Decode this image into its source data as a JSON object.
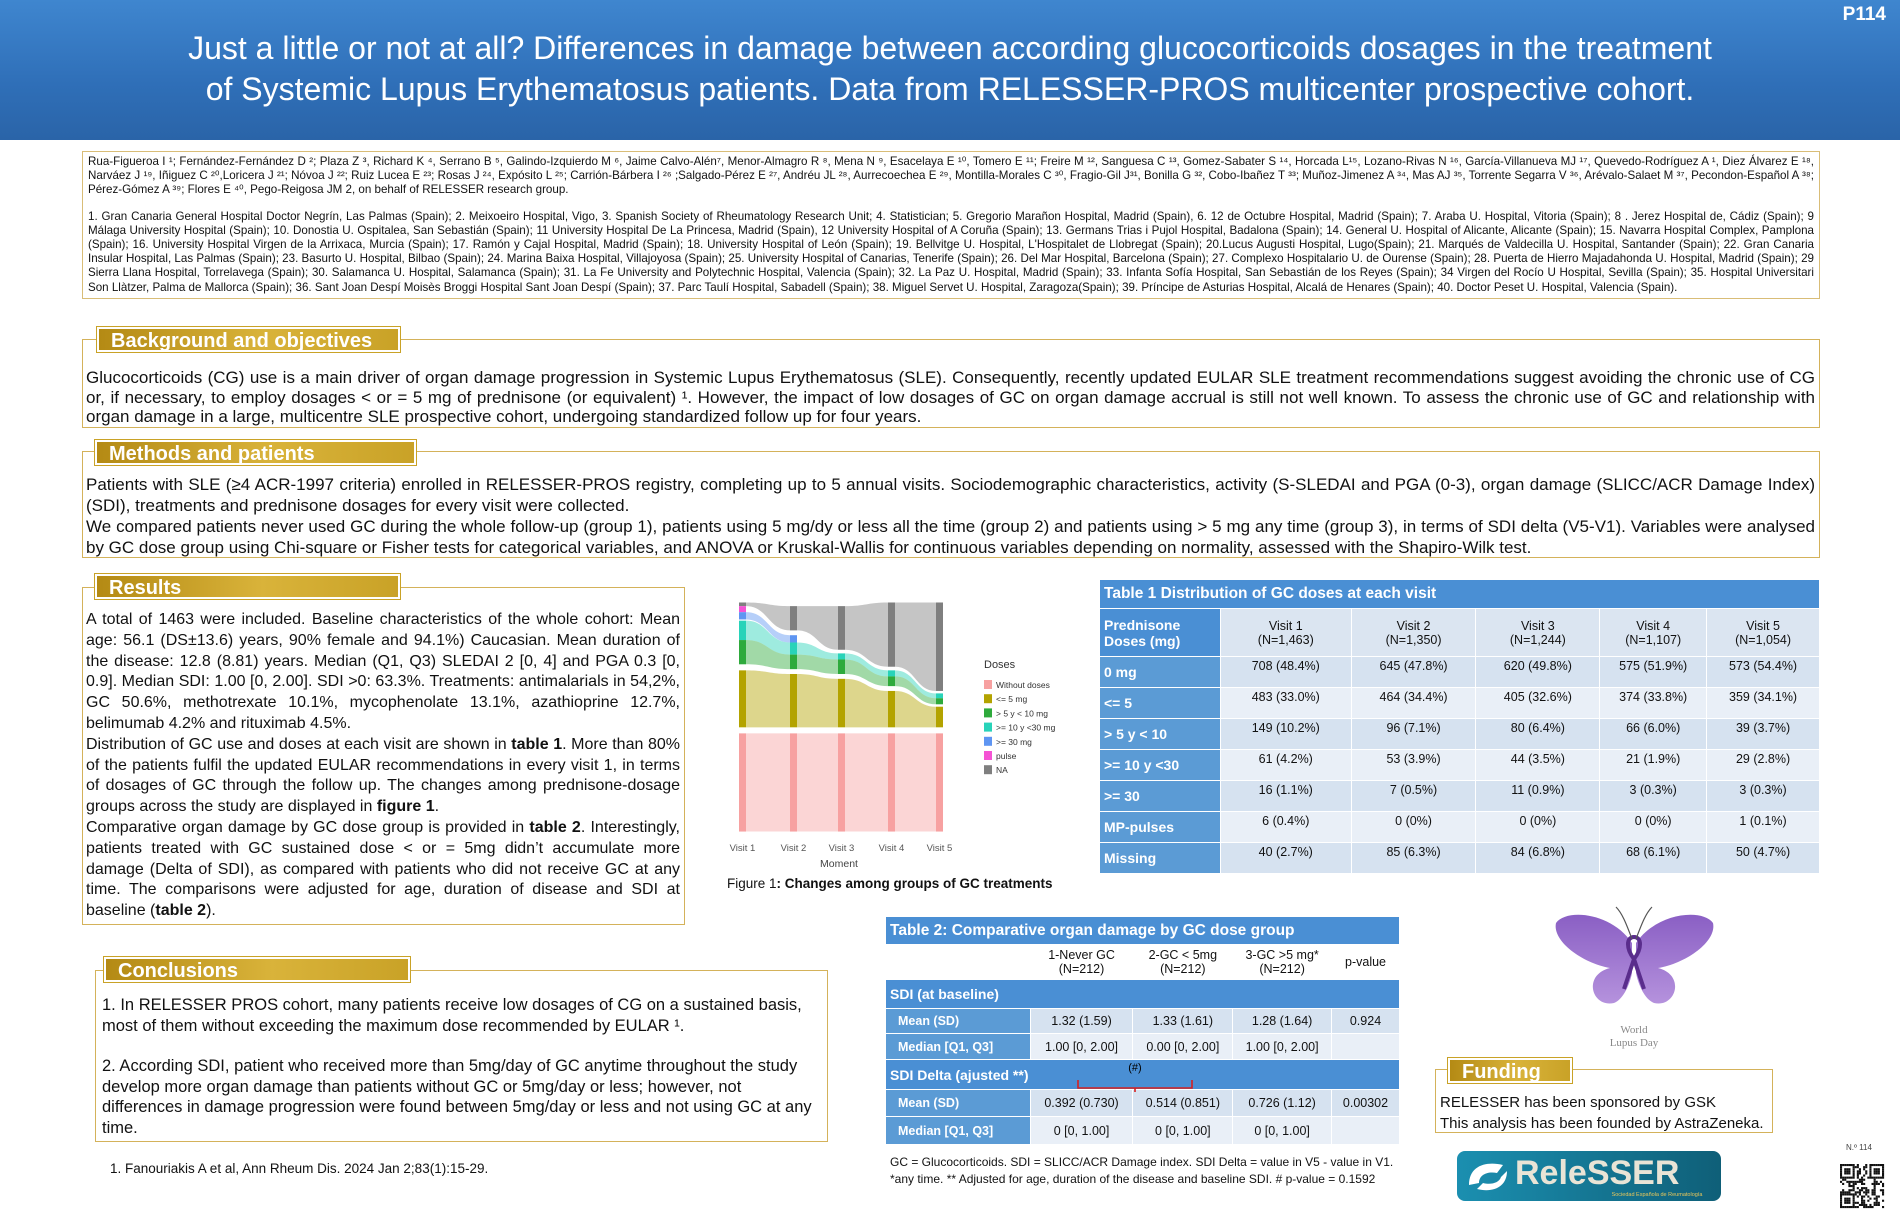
{
  "header": {
    "title": "Just a little or not at all? Differences in damage between according glucocorticoids dosages in the treatment\nof Systemic Lupus Erythematosus patients. Data from RELESSER-PROS multicenter prospective cohort.",
    "code": "P114"
  },
  "authors": "Rua-Figueroa I ¹; Fernández-Fernández D ²; Plaza Z ³, Richard K ⁴, Serrano B ⁵, Galindo-Izquierdo M ⁶, Jaime Calvo-Alén⁷, Menor-Almagro R ⁸, Mena N ⁹, Esacelaya E ¹⁰, Tomero E ¹¹; Freire M ¹², Sanguesa C ¹³, Gomez-Sabater S ¹⁴, Horcada L¹⁵, Lozano-Rivas N ¹⁶, García-Villanueva MJ ¹⁷, Quevedo-Rodríguez A ¹, Diez Álvarez E ¹⁸, Narváez J ¹⁹, Iñiguez C ²⁰,Loricera J ²¹; Nóvoa J ²²; Ruiz Lucea E ²³; Rosas J ²⁴, Expósito L ²⁵; Carrión-Bárbera I ²⁶ ;Salgado-Pérez E ²⁷, Andréu JL ²⁸, Aurrecoechea E ²⁹, Montilla-Morales C ³⁰, Fragio-Gil J³¹, Bonilla G ³², Cobo-Ibañez T ³³; Muñoz-Jimenez A ³⁴, Mas AJ ³⁵, Torrente Segarra V ³⁶, Arévalo-Salaet M ³⁷, Pecondon-Español A ³⁸; Pérez-Gómez A ³⁹; Flores E ⁴⁰, Pego-Reigosa JM 2, on behalf of RELESSER research group.",
  "affiliations": "1. Gran Canaria General Hospital Doctor Negrín, Las Palmas (Spain); 2. Meixoeiro Hospital, Vigo, 3. Spanish Society of Rheumatology Research Unit; 4. Statistician; 5. Gregorio Marañon Hospital, Madrid (Spain), 6. 12 de Octubre Hospital, Madrid (Spain); 7. Araba U. Hospital, Vitoria (Spain); 8 . Jerez Hospital de, Cádiz (Spain); 9 Málaga University Hospital (Spain); 10. Donostia U. Ospitalea, San Sebastián (Spain); 11 University Hospital De La Princesa, Madrid (Spain), 12 University Hospital of A Coruña (Spain); 13. Germans Trias i Pujol Hospital, Badalona (Spain); 14. General U. Hospital of Alicante, Alicante (Spain); 15. Navarra Hospital Complex, Pamplona (Spain); 16. University Hospital Virgen de la Arrixaca, Murcia (Spain); 17. Ramón y Cajal Hospital, Madrid (Spain); 18. University Hospital of León (Spain); 19. Bellvitge U. Hospital, L'Hospitalet de Llobregat (Spain); 20.Lucus Augusti Hospital, Lugo(Spain); 21. Marqués de Valdecilla U. Hospital, Santander (Spain); 22. Gran Canaria Insular Hospital, Las Palmas (Spain); 23. Basurto U. Hospital, Bilbao (Spain); 24. Marina Baixa Hospital, Villajoyosa (Spain); 25. University Hospital of Canarias, Tenerife (Spain); 26. Del Mar Hospital, Barcelona (Spain); 27. Complexo Hospitalario U. de Ourense (Spain); 28. Puerta de Hierro Majadahonda U. Hospital, Madrid (Spain); 29 Sierra Llana Hospital, Torrelavega (Spain); 30. Salamanca U. Hospital, Salamanca (Spain); 31. La Fe University and Polytechnic Hospital, Valencia (Spain); 32. La Paz U. Hospital, Madrid (Spain); 33. Infanta Sofía Hospital, San Sebastián de los Reyes (Spain); 34 Virgen del Rocío U Hospital, Sevilla (Spain); 35. Hospital Universitari Son Llàtzer, Palma de Mallorca (Spain); 36. Sant Joan Despí Moisès Broggi Hospital Sant Joan Despí (Spain); 37. Parc Taulí Hospital, Sabadell (Spain); 38. Miguel Servet U. Hospital, Zaragoza(Spain); 39. Príncipe de Asturias Hospital, Alcalá de Henares (Spain); 40. Doctor Peset U. Hospital, Valencia (Spain).",
  "background": {
    "heading": "Background and objectives",
    "paragraphs": [
      "Glucocorticoids (CG) use is a main driver of organ damage progression in Systemic Lupus Erythematosus (SLE). Consequently, recently updated EULAR SLE treatment recommendations suggest avoiding the chronic use of CG or, if necessary, to employ dosages < or = 5 mg of prednisone (or equivalent) ¹. However, the impact of low dosages of GC on organ damage accrual is still not well known. To assess the chronic use of GC and relationship with organ damage in a large, multicentre SLE prospective cohort, undergoing standardized follow up for four years."
    ]
  },
  "methods": {
    "heading": "Methods and patients",
    "paragraphs": [
      "Patients with SLE (≥4 ACR-1997 criteria) enrolled in RELESSER-PROS registry, completing up to 5 annual visits. Sociodemographic characteristics, activity (S-SLEDAI and PGA (0-3), organ damage (SLICC/ACR Damage Index) (SDI), treatments and prednisone dosages for every visit were collected.",
      "We compared patients never used GC during the whole follow-up (group 1), patients using 5 mg/dy or less all the time (group 2) and patients using > 5 mg any time (group 3), in terms of SDI delta (V5-V1). Variables were analysed by GC dose group using Chi-square or Fisher tests for categorical variables, and ANOVA or Kruskal-Wallis for continuous variables depending on normality, assessed with the Shapiro-Wilk test."
    ]
  },
  "results": {
    "heading": "Results",
    "paragraphs": [
      [
        "A total of 1463 were included. Baseline characteristics of the whole cohort: Mean age: 56.1 (DS±13.6) years, 90% female and 94.1%) Caucasian. Mean duration of the disease: 12.8 (8.81) years. Median (Q1, Q3) SLEDAI 2 [0, 4] and PGA 0.3 [0, 0.9]. Median SDI: 1.00 [0, 2.00]. SDI >0: 63.3%. Treatments: antimalarials in 54,2%, GC 50.6%, methotrexate 10.1%, mycophenolate 13.1%, azathioprine 12.7%, belimumab 4.2% and rituximab 4.5%."
      ],
      [
        "Distribution of GC use and doses at each visit are shown in ",
        "table 1",
        ". More than 80% of the patients fulfil the updated EULAR recommendations in every visit 1, in terms of dosages of GC through the follow up. The changes among prednisone-dosage groups across the study are displayed in ",
        "figure 1",
        "."
      ],
      [
        "Comparative organ damage by GC dose group is provided in ",
        "table 2",
        ". Interestingly, patients treated with GC sustained dose < or = 5mg didn’t accumulate more damage (Delta of SDI), as compared with patients who did not receive GC at any time. The comparisons were adjusted for age, duration of disease and SDI at baseline (",
        "table 2",
        ")."
      ]
    ]
  },
  "figure": {
    "caption": [
      "Figure 1",
      ": Changes among groups of GC treatments"
    ],
    "x_label": "Moment",
    "categories": [
      "Visit 1",
      "Visit 2",
      "Visit 3",
      "Visit 4",
      "Visit 5"
    ],
    "legend_title": "Doses",
    "legend": [
      {
        "label": "Without doses",
        "color": "#f7a1a1"
      },
      {
        "label": "<= 5 mg",
        "color": "#b3a300"
      },
      {
        "label": "> 5 y < 10 mg",
        "color": "#2eaa3c"
      },
      {
        "label": ">= 10 y <30 mg",
        "color": "#28d3b9"
      },
      {
        "label": ">= 30 mg",
        "color": "#5e95f2"
      },
      {
        "label": "pulse",
        "color": "#f553d4"
      },
      {
        "label": "NA",
        "color": "#7f7f7f"
      }
    ]
  },
  "table1": {
    "title": "Table 1 Distribution of GC doses at each visit",
    "header": [
      "Prednisone\nDoses (mg)",
      "Visit 1\n(N=1,463)",
      "Visit 2\n(N=1,350)",
      "Visit 3\n(N=1,244)",
      "Visit 4\n(N=1,107)",
      "Visit 5\n(N=1,054)"
    ],
    "rows": [
      {
        "label": "0 mg",
        "cells": [
          "708 (48.4%)",
          "645 (47.8%)",
          "620 (49.8%)",
          "575 (51.9%)",
          "573 (54.4%)"
        ]
      },
      {
        "label": "<= 5",
        "cells": [
          "483 (33.0%)",
          "464 (34.4%)",
          "405 (32.6%)",
          "374 (33.8%)",
          "359 (34.1%)"
        ]
      },
      {
        "label": "> 5 y < 10",
        "cells": [
          "149 (10.2%)",
          "96 (7.1%)",
          "80 (6.4%)",
          "66 (6.0%)",
          "39 (3.7%)"
        ]
      },
      {
        "label": ">= 10 y <30",
        "cells": [
          "61 (4.2%)",
          "53 (3.9%)",
          "44 (3.5%)",
          "21 (1.9%)",
          "29 (2.8%)"
        ]
      },
      {
        "label": ">= 30",
        "cells": [
          "16 (1.1%)",
          "7 (0.5%)",
          "11 (0.9%)",
          "3 (0.3%)",
          "3 (0.3%)"
        ]
      },
      {
        "label": "MP-pulses",
        "cells": [
          "6 (0.4%)",
          "0 (0%)",
          "0 (0%)",
          "0 (0%)",
          "1 (0.1%)"
        ]
      },
      {
        "label": "Missing",
        "cells": [
          "40 (2.7%)",
          "85 (6.3%)",
          "84 (6.8%)",
          "68 (6.1%)",
          "50 (4.7%)"
        ]
      }
    ]
  },
  "table2": {
    "title": "Table 2: Comparative organ damage by GC dose group",
    "header": [
      "1-Never GC\n(N=212)",
      "2-GC < 5mg\n(N=212)",
      "3-GC >5 mg*\n(N=212)",
      "p-value"
    ],
    "rows": [
      {
        "section": "SDI (at baseline)"
      },
      {
        "label": "Mean (SD)",
        "cells": [
          "1.32 (1.59)",
          "1.33 (1.61)",
          "1.28 (1.64)",
          "0.924"
        ]
      },
      {
        "label": "Median [Q1, Q3]",
        "cells": [
          "1.00 [0, 2.00]",
          "0.00 [0, 2.00]",
          "1.00 [0, 2.00]"
        ]
      },
      {
        "section": "SDI Delta (ajusted **)"
      },
      {
        "label": "Mean (SD)",
        "cells": [
          "0.392 (0.730)",
          "0.514 (0.851)",
          "0.726 (1.12)",
          "0.00302"
        ]
      },
      {
        "label": "Median [Q1, Q3]",
        "cells": [
          "0 [0, 1.00]",
          "0 [0, 1.00]",
          "0 [0, 1.00]"
        ]
      }
    ],
    "annotation": "(#)",
    "notes": [
      "GC = Glucocorticoids. SDI = SLICC/ACR Damage index. SDI Delta = value in V5 - value in V1.",
      "*any time. ** Adjusted for age, duration of the disease and baseline SDI. #  p-value = 0.1592"
    ]
  },
  "conclusions": {
    "heading": "Conclusions",
    "paragraphs": [
      "1. In RELESSER PROS cohort, many patients receive low dosages of CG on a sustained basis, most of them without exceeding the maximum dose recommended by EULAR ¹.",
      "2. According SDI, patient who received more than 5mg/day of GC anytime throughout the study develop more organ damage than patients without GC or 5mg/day or less; however, not differences in damage progression were found between 5mg/day or less and not using GC at any time."
    ]
  },
  "reference": "1. Fanouriakis A et al, Ann Rheum Dis. 2024 Jan 2;83(1):15-29.",
  "funding": {
    "heading": "Funding",
    "paragraphs": [
      "RELESSER has been sponsored by GSK",
      "This analysis has been founded by AstraZeneka."
    ]
  },
  "logos": {
    "lupus_day": [
      "World",
      "Lupus Day"
    ],
    "relesser": "ReleSSER",
    "relesser_sub": "Sociedad Española de Reumatología",
    "qr_number": "N.º 114"
  }
}
